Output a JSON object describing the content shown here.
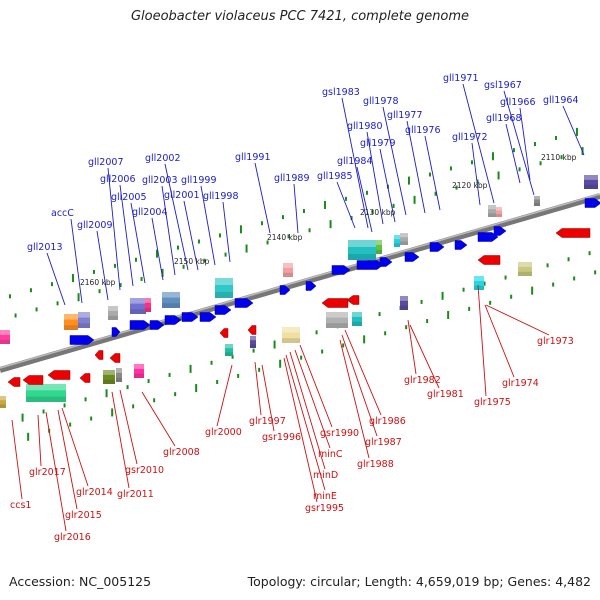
{
  "title": "Gloeobacter violaceus PCC 7421, complete genome",
  "footer": {
    "accession": "Accession: NC_005125",
    "summary": "Topology: circular; Length: 4,659,019 bp; Genes: 4,482"
  },
  "colors": {
    "forward_gene": "#0000ee",
    "reverse_gene": "#ee0000",
    "forward_label": "#1c1cc8",
    "reverse_label": "#cc1111",
    "backbone": "#888888",
    "tick": "#1a8a1a"
  },
  "kbp_marks": [
    "2110 kbp",
    "2120 kbp",
    "2130 kbp",
    "2140 kbp",
    "2150 kbp",
    "2160 kbp"
  ],
  "forward_labels": [
    "gll1964",
    "gll1966",
    "gsl1967",
    "gll1968",
    "gll1971",
    "gll1972",
    "gll1976",
    "gll1977",
    "gll1978",
    "gll1979",
    "gll1980",
    "gsl1983",
    "gll1984",
    "gll1985",
    "gll1989",
    "gll1991",
    "gll1998",
    "gll1999",
    "gll2001",
    "gll2002",
    "gll2003",
    "gll2004",
    "gll2005",
    "gll2006",
    "gll2007",
    "gll2009",
    "accC",
    "gll2013"
  ],
  "reverse_labels": [
    "glr1973",
    "glr1974",
    "glr1975",
    "glr1981",
    "glr1982",
    "glr1986",
    "glr1987",
    "glr1988",
    "gsr1990",
    "minC",
    "minD",
    "minE",
    "gsr1995",
    "gsr1996",
    "glr1997",
    "glr2000",
    "glr2008",
    "gsr2010",
    "glr2011",
    "glr2014",
    "glr2015",
    "glr2016",
    "glr2017",
    "ccs1"
  ]
}
